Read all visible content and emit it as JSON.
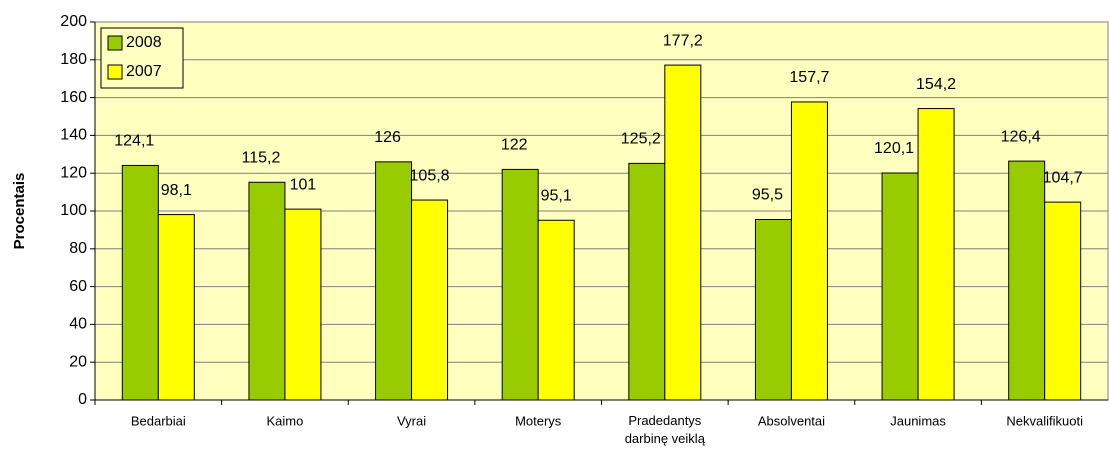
{
  "chart_data": {
    "type": "bar",
    "ylabel": "Procentais",
    "categories": [
      "Bedarbiai",
      "Kaimo",
      "Vyrai",
      "Moterys",
      "Pradedantys darbinę veiklą",
      "Absolventai",
      "Jaunimas",
      "Nekvalifikuoti"
    ],
    "series": [
      {
        "name": "2008",
        "color": "#99cc00",
        "values": [
          124.1,
          115.2,
          126,
          122,
          125.2,
          95.5,
          120.1,
          126.4
        ],
        "value_labels": [
          "124,1",
          "115,2",
          "126",
          "122",
          "125,2",
          "95,5",
          "120,1",
          "126,4"
        ]
      },
      {
        "name": "2007",
        "color": "#ffff00",
        "values": [
          98.1,
          101,
          105.8,
          95.1,
          177.2,
          157.7,
          154.2,
          104.7
        ],
        "value_labels": [
          "98,1",
          "101",
          "105,8",
          "95,1",
          "177,2",
          "157,7",
          "154,2",
          "104,7"
        ]
      }
    ],
    "ylim": [
      0,
      200
    ],
    "yticks": [
      0,
      20,
      40,
      60,
      80,
      100,
      120,
      140,
      160,
      180,
      200
    ],
    "grid": true,
    "legend": "top-left"
  }
}
